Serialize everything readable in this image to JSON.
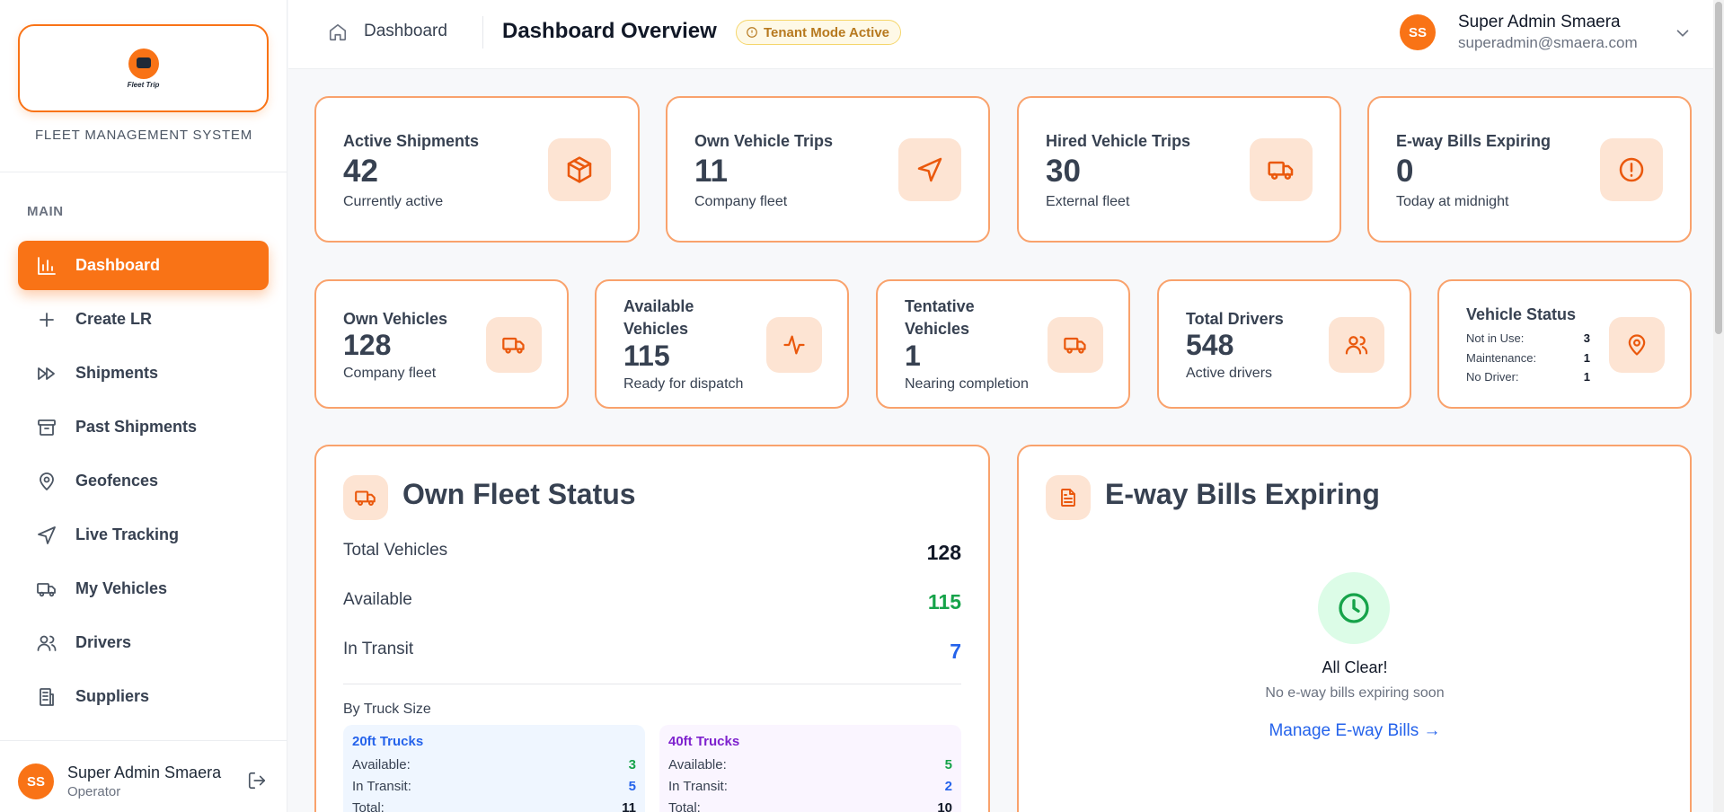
{
  "brand": {
    "logo_text": "Fleet Trip",
    "subtitle": "FLEET MANAGEMENT SYSTEM"
  },
  "sidebar": {
    "section": "MAIN",
    "items": [
      {
        "label": "Dashboard",
        "icon": "bar-chart-icon",
        "active": true
      },
      {
        "label": "Create LR",
        "icon": "plus-icon"
      },
      {
        "label": "Shipments",
        "icon": "fast-forward-icon"
      },
      {
        "label": "Past Shipments",
        "icon": "archive-icon"
      },
      {
        "label": "Geofences",
        "icon": "map-pin-icon"
      },
      {
        "label": "Live Tracking",
        "icon": "navigation-icon"
      },
      {
        "label": "My Vehicles",
        "icon": "truck-icon"
      },
      {
        "label": "Drivers",
        "icon": "users-icon"
      },
      {
        "label": "Suppliers",
        "icon": "building-icon"
      }
    ],
    "user": {
      "initials": "SS",
      "name": "Super Admin Smaera",
      "role": "Operator"
    }
  },
  "header": {
    "breadcrumb": "Dashboard",
    "title": "Dashboard Overview",
    "badge": "Tenant Mode Active",
    "user": {
      "initials": "SS",
      "name": "Super Admin Smaera",
      "email": "superadmin@smaera.com"
    }
  },
  "stats_top": [
    {
      "label": "Active Shipments",
      "value": "42",
      "sub": "Currently active",
      "icon": "package-icon"
    },
    {
      "label": "Own Vehicle Trips",
      "value": "11",
      "sub": "Company fleet",
      "icon": "navigation-icon"
    },
    {
      "label": "Hired Vehicle Trips",
      "value": "30",
      "sub": "External fleet",
      "icon": "truck-icon"
    },
    {
      "label": "E-way Bills Expiring",
      "value": "0",
      "sub": "Today at midnight",
      "icon": "alert-circle-icon"
    }
  ],
  "stats_mid": [
    {
      "label": "Own Vehicles",
      "value": "128",
      "sub": "Company fleet",
      "icon": "truck-icon"
    },
    {
      "label": "Available Vehicles",
      "value": "115",
      "sub": "Ready for dispatch",
      "icon": "activity-icon"
    },
    {
      "label": "Tentative Vehicles",
      "value": "1",
      "sub": "Nearing completion",
      "icon": "truck-icon"
    },
    {
      "label": "Total Drivers",
      "value": "548",
      "sub": "Active drivers",
      "icon": "users-icon"
    }
  ],
  "vehicle_status": {
    "label": "Vehicle Status",
    "rows": [
      {
        "k": "Not in Use:",
        "v": "3"
      },
      {
        "k": "Maintenance:",
        "v": "1"
      },
      {
        "k": "No Driver:",
        "v": "1"
      }
    ]
  },
  "fleet_status": {
    "title": "Own Fleet Status",
    "total_label": "Total Vehicles",
    "total": "128",
    "available_label": "Available",
    "available": "115",
    "transit_label": "In Transit",
    "transit": "7",
    "by_size_label": "By Truck Size",
    "sizes": [
      {
        "title": "20ft Trucks",
        "available_label": "Available:",
        "available": "3",
        "transit_label": "In Transit:",
        "transit": "5",
        "total_label": "Total:",
        "total": "11"
      },
      {
        "title": "40ft Trucks",
        "available_label": "Available:",
        "available": "5",
        "transit_label": "In Transit:",
        "transit": "2",
        "total_label": "Total:",
        "total": "10"
      }
    ]
  },
  "eway": {
    "title": "E-way Bills Expiring",
    "clear_title": "All Clear!",
    "clear_sub": "No e-way bills expiring soon",
    "link": "Manage E-way Bills →"
  },
  "colors": {
    "accent": "#f97316",
    "green": "#16a34a",
    "blue": "#2563eb",
    "purple": "#7e22ce"
  }
}
